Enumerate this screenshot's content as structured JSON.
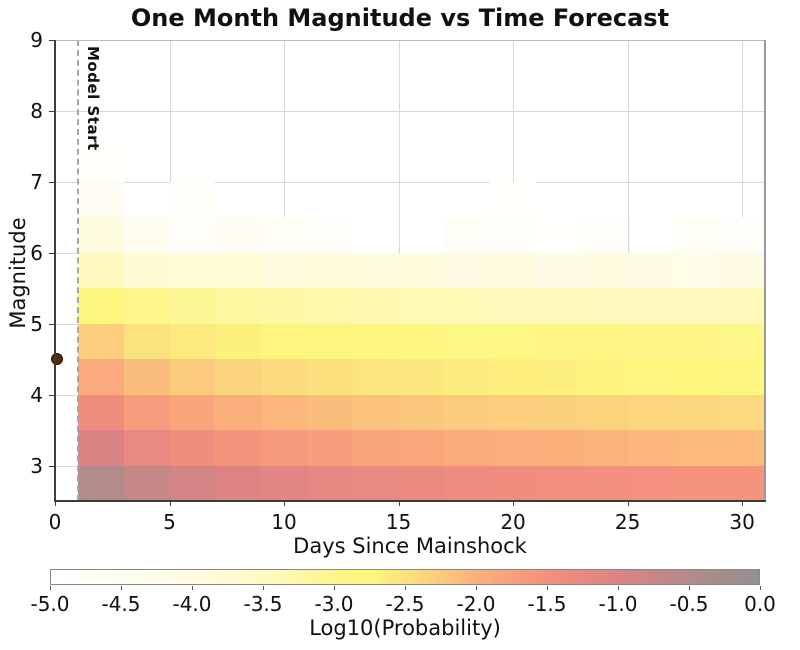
{
  "chart_data": {
    "type": "heatmap",
    "title": "One Month Magnitude vs Time Forecast",
    "xlabel": "Days Since Mainshock",
    "ylabel": "Magnitude",
    "colorbar_label": "Log10(Probability)",
    "annotation": "Model Start",
    "xlim": [
      0,
      31
    ],
    "ylim": [
      2.5,
      9
    ],
    "vlim": [
      -5,
      0
    ],
    "grid": true,
    "x_ticks": [
      0,
      5,
      10,
      15,
      20,
      25,
      30
    ],
    "y_ticks": [
      3,
      4,
      5,
      6,
      7,
      8,
      9
    ],
    "colorbar_ticks": [
      {
        "v": -5.0,
        "label": "-5.0"
      },
      {
        "v": -4.5,
        "label": "-4.5"
      },
      {
        "v": -4.0,
        "label": "-4.0"
      },
      {
        "v": -3.5,
        "label": "-3.5"
      },
      {
        "v": -3.0,
        "label": "-3.0"
      },
      {
        "v": -2.5,
        "label": "-2.5"
      },
      {
        "v": -2.0,
        "label": "-2.0"
      },
      {
        "v": -1.5,
        "label": "-1.5"
      },
      {
        "v": -1.0,
        "label": "-1.0"
      },
      {
        "v": -0.5,
        "label": "-0.5"
      },
      {
        "v": 0.0,
        "label": "0.0"
      }
    ],
    "day_bin_edges": [
      1,
      3,
      5,
      7,
      9,
      11,
      13,
      15,
      17,
      19,
      21,
      23,
      25,
      27,
      29,
      31
    ],
    "mag_bin_edges": [
      2.5,
      3.0,
      3.5,
      4.0,
      4.5,
      5.0,
      5.5,
      6.0,
      6.5,
      7.0,
      7.5
    ],
    "masked_below": -5.0,
    "values_log10_probability": [
      [
        -0.45,
        -0.72,
        -0.88,
        -1.0,
        -1.1,
        -1.18,
        -1.25,
        -1.31,
        -1.36,
        -1.4,
        -1.44,
        -1.47,
        -1.5,
        -1.53,
        -1.55
      ],
      [
        -0.98,
        -1.25,
        -1.42,
        -1.55,
        -1.65,
        -1.73,
        -1.8,
        -1.86,
        -1.91,
        -1.95,
        -1.99,
        -2.02,
        -2.05,
        -2.08,
        -2.1
      ],
      [
        -1.42,
        -1.68,
        -1.84,
        -1.96,
        -2.05,
        -2.12,
        -2.18,
        -2.23,
        -2.27,
        -2.3,
        -2.33,
        -2.35,
        -2.37,
        -2.39,
        -2.4
      ],
      [
        -1.9,
        -2.12,
        -2.25,
        -2.35,
        -2.42,
        -2.48,
        -2.53,
        -2.57,
        -2.61,
        -2.64,
        -2.67,
        -2.7,
        -2.73,
        -2.76,
        -2.8
      ],
      [
        -2.3,
        -2.5,
        -2.6,
        -2.68,
        -2.73,
        -2.77,
        -2.8,
        -2.83,
        -2.85,
        -2.87,
        -2.88,
        -2.9,
        -2.91,
        -2.93,
        -2.95
      ],
      [
        -2.8,
        -3.0,
        -3.1,
        -3.18,
        -3.24,
        -3.28,
        -3.32,
        -3.35,
        -3.38,
        -3.4,
        -3.42,
        -3.44,
        -3.45,
        -3.44,
        -3.42
      ],
      [
        -3.45,
        -3.72,
        -3.82,
        -3.78,
        -3.95,
        -3.85,
        -3.9,
        -3.88,
        -4.0,
        -3.95,
        -4.08,
        -3.98,
        -4.05,
        -4.2,
        -4.0
      ],
      [
        -3.95,
        -4.5,
        -4.8,
        -4.6,
        -4.7,
        -4.75,
        -5.2,
        -5.15,
        -4.7,
        -4.75,
        -4.9,
        -4.8,
        -5.3,
        -4.7,
        -4.75
      ],
      [
        -4.6,
        -5.2,
        -4.75,
        -5.3,
        -5.1,
        -5.15,
        -5.4,
        -5.05,
        -5.2,
        -4.9,
        -5.3,
        -5.1,
        -5.4,
        -5.0,
        -5.3
      ],
      [
        -4.9,
        -5.5,
        -5.5,
        -5.5,
        -5.5,
        -5.5,
        -5.5,
        -5.5,
        -5.5,
        -5.5,
        -5.5,
        -5.5,
        -5.5,
        -5.5,
        -5.5
      ]
    ],
    "model_start_day": 1,
    "mainshock": {
      "day": 0.1,
      "magnitude": 4.5
    },
    "colormap_stops": [
      {
        "v": -5.0,
        "c": "#ffffff"
      },
      {
        "v": -4.5,
        "c": "#fffdf0"
      },
      {
        "v": -4.0,
        "c": "#fffbe2"
      },
      {
        "v": -3.5,
        "c": "#fefac4"
      },
      {
        "v": -3.0,
        "c": "#fdf68a"
      },
      {
        "v": -2.75,
        "c": "#fdf77e"
      },
      {
        "v": -2.5,
        "c": "#fce27e"
      },
      {
        "v": -2.0,
        "c": "#fbb17c"
      },
      {
        "v": -1.5,
        "c": "#f4907d"
      },
      {
        "v": -1.0,
        "c": "#dc8384"
      },
      {
        "v": -0.5,
        "c": "#b58a8a"
      },
      {
        "v": 0.0,
        "c": "#929090"
      }
    ],
    "colors": {
      "background": "#ffffff",
      "gridline": "#d8d8d8",
      "model_start_line": "#a6a6a6",
      "mainshock_dot_fill": "#542a0e",
      "mainshock_dot_edge": "#2e1404",
      "spine_dark": "#3c3c3c",
      "spine_light": "#9a9a9a",
      "text": "#111111"
    }
  }
}
